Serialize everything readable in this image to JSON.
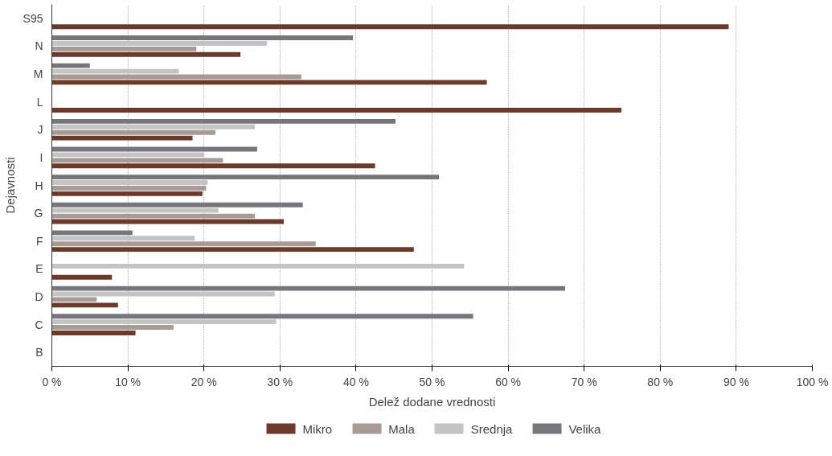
{
  "chart_data": {
    "type": "bar",
    "orientation": "horizontal",
    "xlabel": "Delež dodane vrednosti",
    "ylabel": "Dejavnosti",
    "categories": [
      "S95",
      "N",
      "M",
      "L",
      "J",
      "I",
      "H",
      "G",
      "F",
      "E",
      "D",
      "C",
      "B"
    ],
    "series": [
      {
        "name": "Mikro",
        "color": "#6b3a2a",
        "values": [
          89.0,
          24.8,
          57.2,
          74.9,
          18.5,
          42.5,
          19.8,
          30.5,
          47.6,
          7.9,
          8.7,
          11.0,
          null
        ]
      },
      {
        "name": "Mala",
        "color": "#a89a94",
        "values": [
          null,
          19.0,
          32.8,
          null,
          21.5,
          22.5,
          20.3,
          26.7,
          34.7,
          null,
          5.9,
          16.0,
          null
        ]
      },
      {
        "name": "Srednja",
        "color": "#c4c4c4",
        "values": [
          null,
          28.3,
          16.7,
          null,
          26.7,
          20.0,
          20.5,
          21.9,
          18.8,
          54.2,
          29.3,
          29.5,
          null
        ]
      },
      {
        "name": "Velika",
        "color": "#77767b",
        "values": [
          null,
          39.6,
          5.0,
          null,
          45.2,
          27.0,
          50.9,
          33.0,
          10.6,
          null,
          67.5,
          55.4,
          null
        ]
      }
    ],
    "xlim": [
      0,
      100
    ],
    "xticks": [
      {
        "value": 0,
        "label": "0 %"
      },
      {
        "value": 10,
        "label": "10 %"
      },
      {
        "value": 20,
        "label": "20 %"
      },
      {
        "value": 30,
        "label": "30 %"
      },
      {
        "value": 40,
        "label": "40 %"
      },
      {
        "value": 50,
        "label": "50 %"
      },
      {
        "value": 60,
        "label": "60 %"
      },
      {
        "value": 70,
        "label": "70 %"
      },
      {
        "value": 80,
        "label": "80 %"
      },
      {
        "value": 90,
        "label": "90 %"
      },
      {
        "value": 100,
        "label": "100 %"
      }
    ],
    "grid": "x",
    "legend": "bottom"
  }
}
